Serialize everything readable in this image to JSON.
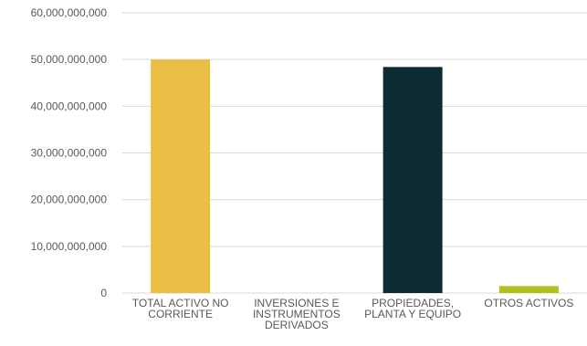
{
  "chart_data": {
    "type": "bar",
    "categories": [
      [
        "TOTAL ACTIVO NO",
        "CORRIENTE"
      ],
      [
        "INVERSIONES E",
        "INSTRUMENTOS",
        "DERIVADOS"
      ],
      [
        "PROPIEDADES,",
        "PLANTA Y EQUIPO"
      ],
      [
        "OTROS ACTIVOS"
      ]
    ],
    "values": [
      50000000000,
      0,
      48400000000,
      1500000000
    ],
    "colors": [
      "#EBBE46",
      "#EBBE46",
      "#0D2B33",
      "#B5C020"
    ],
    "y_ticks": [
      0,
      10000000000,
      20000000000,
      30000000000,
      40000000000,
      50000000000,
      60000000000
    ],
    "y_tick_labels": [
      "0",
      "10,000,000,000",
      "20,000,000,000",
      "30,000,000,000",
      "40,000,000,000",
      "50,000,000,000",
      "60,000,000,000"
    ],
    "ylim": [
      0,
      60000000000
    ],
    "grid": true,
    "title": "",
    "xlabel": "",
    "ylabel": ""
  }
}
